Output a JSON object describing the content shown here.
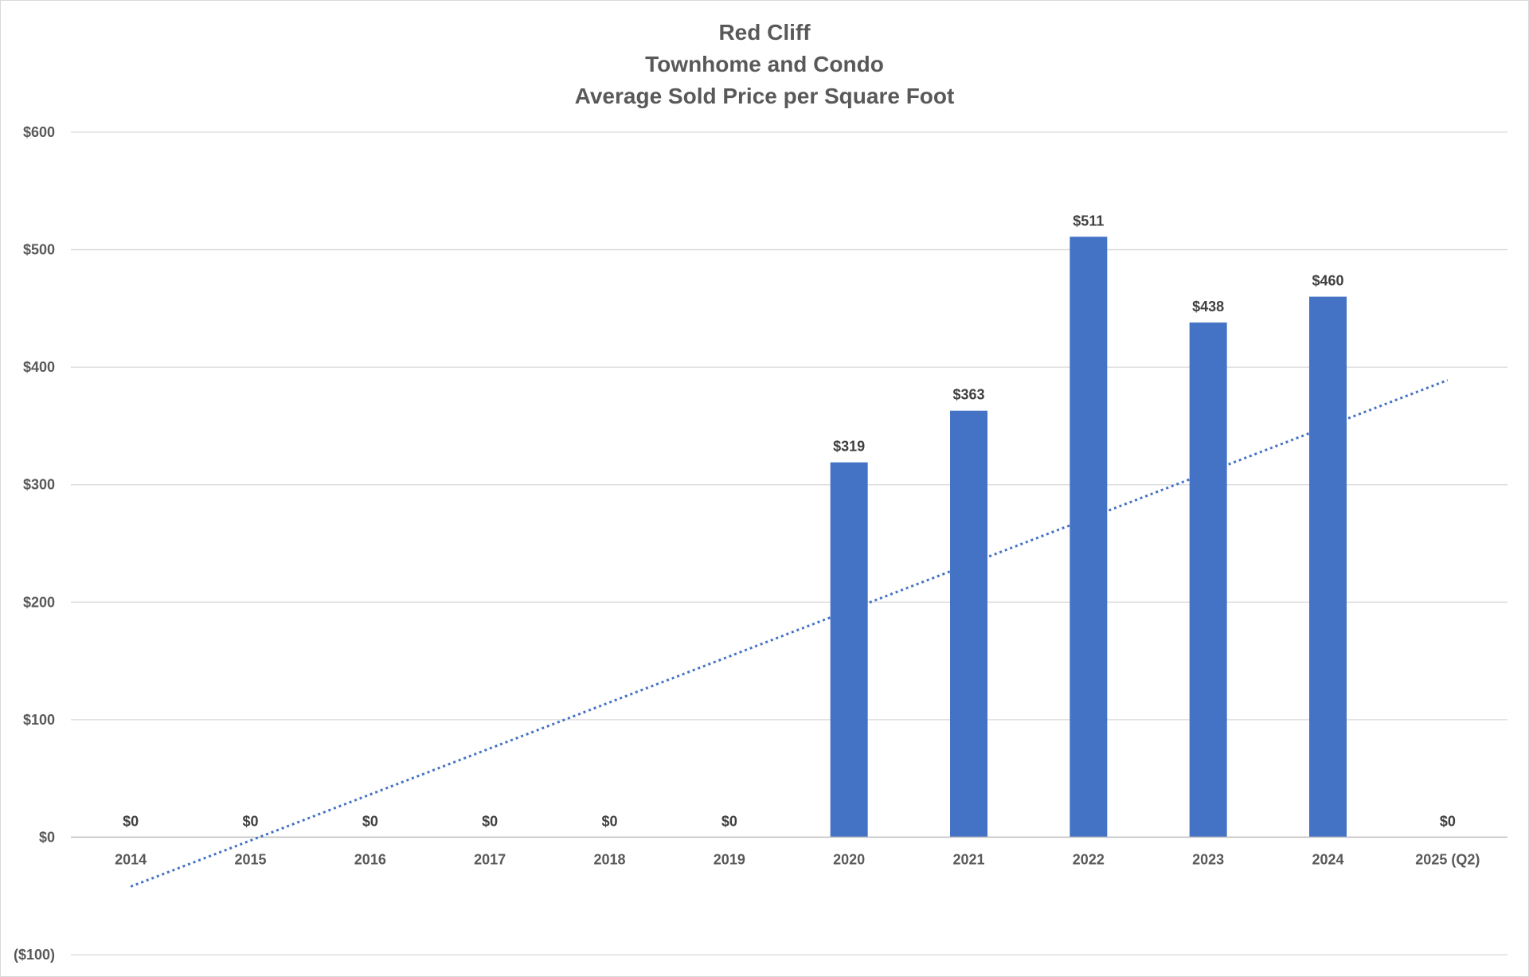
{
  "chart_data": {
    "type": "bar",
    "title_lines": [
      "Red Cliff",
      "Townhome and Condo",
      "Average Sold Price per Square Foot"
    ],
    "categories": [
      "2014",
      "2015",
      "2016",
      "2017",
      "2018",
      "2019",
      "2020",
      "2021",
      "2022",
      "2023",
      "2024",
      "2025 (Q2)"
    ],
    "values": [
      0,
      0,
      0,
      0,
      0,
      0,
      319,
      363,
      511,
      438,
      460,
      0
    ],
    "data_labels": [
      "$0",
      "$0",
      "$0",
      "$0",
      "$0",
      "$0",
      "$319",
      "$363",
      "$511",
      "$438",
      "$460",
      "$0"
    ],
    "ylim": [
      -100,
      600
    ],
    "yticks": [
      -100,
      0,
      100,
      200,
      300,
      400,
      500,
      600
    ],
    "ytick_labels": [
      "($100)",
      "$0",
      "$100",
      "$200",
      "$300",
      "$400",
      "$500",
      "$600"
    ],
    "trendline": {
      "type": "linear",
      "style": "dotted",
      "start_value": -42,
      "end_value": 389
    },
    "grid": true,
    "legend": "none",
    "colors": {
      "bar": "#4472C4",
      "trend": "#4472C4",
      "negative_tick": "#FF0000",
      "text": "#595959"
    }
  }
}
